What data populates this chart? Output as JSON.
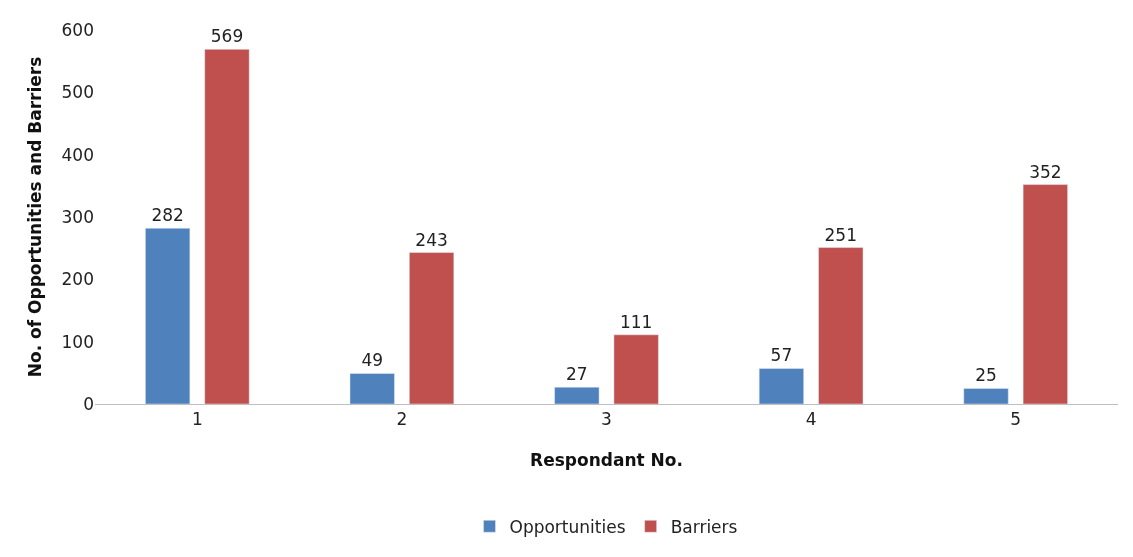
{
  "chart_data": {
    "type": "bar",
    "xlabel": "Respondant No.",
    "ylabel": "No. of Opportunities and Barriers",
    "categories": [
      "1",
      "2",
      "3",
      "4",
      "5"
    ],
    "series": [
      {
        "name": "Opportunities",
        "color": "#4f81bd",
        "values": [
          282,
          49,
          27,
          57,
          25
        ]
      },
      {
        "name": "Barriers",
        "color": "#c0504d",
        "values": [
          569,
          243,
          111,
          251,
          352
        ]
      }
    ],
    "ylim": [
      0,
      600
    ],
    "yticks": [
      0,
      100,
      200,
      300,
      400,
      500,
      600
    ],
    "data_labels": true,
    "grid": false,
    "legend": "bottom"
  }
}
